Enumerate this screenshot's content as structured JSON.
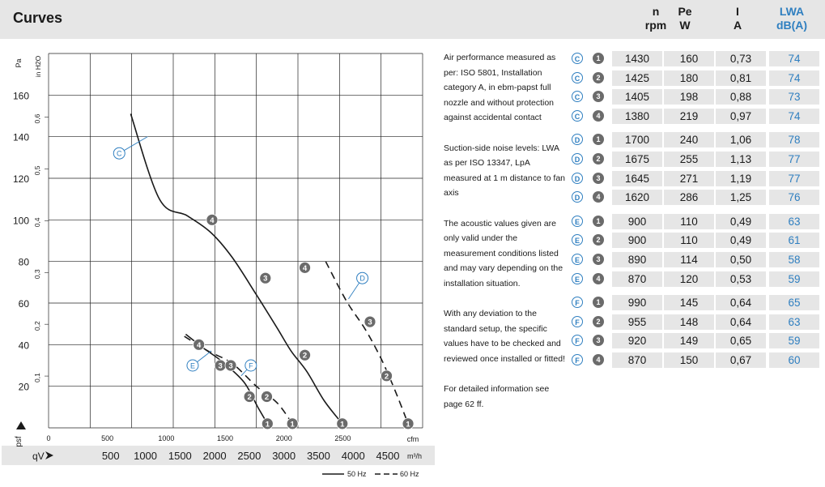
{
  "header": {
    "title": "Curves",
    "columns": [
      {
        "l1": "n",
        "l2": "rpm",
        "blue": false
      },
      {
        "l1": "Pe",
        "l2": "W",
        "blue": false
      },
      {
        "l1": "I",
        "l2": "A",
        "blue": false
      },
      {
        "l1": "LWA",
        "l2": "dB(A)",
        "blue": true
      }
    ]
  },
  "notes": [
    "Air performance measured as per: ISO 5801, Installation category A, in ebm-papst full nozzle and without protection against accidental contact",
    "Suction-side noise levels: LWA as per ISO 13347, LpA measured at 1 m distance to fan axis",
    "The acoustic values given are only valid under the measurement conditions listed and may vary depending on the installation situation.",
    "With any deviation to the standard setup, the specific values have to be checked and reviewed once installed or fitted!",
    "For detailed information see page 62 ff."
  ],
  "table": [
    {
      "group": "C",
      "pt": "1",
      "n": "1430",
      "pe": "160",
      "i": "0,73",
      "lwa": "74"
    },
    {
      "group": "C",
      "pt": "2",
      "n": "1425",
      "pe": "180",
      "i": "0,81",
      "lwa": "74"
    },
    {
      "group": "C",
      "pt": "3",
      "n": "1405",
      "pe": "198",
      "i": "0,88",
      "lwa": "73"
    },
    {
      "group": "C",
      "pt": "4",
      "n": "1380",
      "pe": "219",
      "i": "0,97",
      "lwa": "74"
    },
    {
      "group": "D",
      "pt": "1",
      "n": "1700",
      "pe": "240",
      "i": "1,06",
      "lwa": "78"
    },
    {
      "group": "D",
      "pt": "2",
      "n": "1675",
      "pe": "255",
      "i": "1,13",
      "lwa": "77"
    },
    {
      "group": "D",
      "pt": "3",
      "n": "1645",
      "pe": "271",
      "i": "1,19",
      "lwa": "77"
    },
    {
      "group": "D",
      "pt": "4",
      "n": "1620",
      "pe": "286",
      "i": "1,25",
      "lwa": "76"
    },
    {
      "group": "E",
      "pt": "1",
      "n": "900",
      "pe": "110",
      "i": "0,49",
      "lwa": "63"
    },
    {
      "group": "E",
      "pt": "2",
      "n": "900",
      "pe": "110",
      "i": "0,49",
      "lwa": "61"
    },
    {
      "group": "E",
      "pt": "3",
      "n": "890",
      "pe": "114",
      "i": "0,50",
      "lwa": "58"
    },
    {
      "group": "E",
      "pt": "4",
      "n": "870",
      "pe": "120",
      "i": "0,53",
      "lwa": "59"
    },
    {
      "group": "F",
      "pt": "1",
      "n": "990",
      "pe": "145",
      "i": "0,64",
      "lwa": "65"
    },
    {
      "group": "F",
      "pt": "2",
      "n": "955",
      "pe": "148",
      "i": "0,64",
      "lwa": "63"
    },
    {
      "group": "F",
      "pt": "3",
      "n": "920",
      "pe": "149",
      "i": "0,65",
      "lwa": "59"
    },
    {
      "group": "F",
      "pt": "4",
      "n": "870",
      "pe": "150",
      "i": "0,67",
      "lwa": "60"
    }
  ],
  "colors": {
    "blue": "#2f7fc0",
    "grid": "#222222",
    "cell": "#e6e6e6",
    "badge": "#6b6b6b",
    "band": "#e6e6e6"
  },
  "chart_data": {
    "type": "line",
    "ylabel_pa": "Pa",
    "ylabel_inh2o": "in H2O",
    "y_axis_symbol": "psf",
    "x_axis_symbol": "qV",
    "ylim_pa": [
      0,
      180
    ],
    "xlim_m3h": [
      0,
      5400
    ],
    "y_ticks_pa": [
      "20",
      "40",
      "60",
      "80",
      "100",
      "120",
      "140",
      "160"
    ],
    "y_ticks_inh2o": [
      "0,1",
      "0,2",
      "0,3",
      "0,4",
      "0,5",
      "0,6"
    ],
    "x_ticks_cfm": [
      "0",
      "500",
      "1000",
      "1500",
      "2000",
      "2500"
    ],
    "x_unit_cfm": "cfm",
    "x_ticks_m3h": [
      "500",
      "1000",
      "1500",
      "2000",
      "2500",
      "3000",
      "3500",
      "4000",
      "4500"
    ],
    "x_unit_m3h": "m³/h",
    "legend": [
      {
        "label": "50 Hz",
        "style": "solid"
      },
      {
        "label": "60 Hz",
        "style": "dashed"
      }
    ],
    "series": [
      {
        "style": "solid",
        "points": [
          [
            1185,
            151
          ],
          [
            1600,
            110
          ],
          [
            2000,
            102
          ],
          [
            2340,
            94
          ],
          [
            2650,
            82
          ],
          [
            3000,
            64
          ],
          [
            3300,
            48
          ],
          [
            3500,
            37
          ],
          [
            3730,
            27
          ],
          [
            3980,
            13
          ],
          [
            4240,
            2
          ]
        ]
      },
      {
        "style": "dashed",
        "points": [
          [
            4000,
            80
          ],
          [
            4300,
            61
          ],
          [
            4560,
            48
          ],
          [
            4760,
            36
          ],
          [
            4900,
            26
          ],
          [
            5050,
            14
          ],
          [
            5190,
            2
          ]
        ]
      },
      {
        "style": "solid",
        "points": [
          [
            1980,
            45
          ],
          [
            2250,
            38
          ],
          [
            2500,
            32
          ],
          [
            2820,
            22
          ],
          [
            3020,
            10
          ],
          [
            3160,
            2
          ]
        ]
      },
      {
        "style": "dashed",
        "points": [
          [
            1960,
            44
          ],
          [
            2300,
            37
          ],
          [
            2650,
            31
          ],
          [
            3000,
            20
          ],
          [
            3300,
            12
          ],
          [
            3520,
            2
          ]
        ]
      }
    ],
    "markers": [
      {
        "label": "1",
        "x": 3160,
        "y": 2,
        "kind": "num"
      },
      {
        "label": "1",
        "x": 3520,
        "y": 2,
        "kind": "num"
      },
      {
        "label": "1",
        "x": 4240,
        "y": 2,
        "kind": "num"
      },
      {
        "label": "1",
        "x": 5190,
        "y": 2,
        "kind": "num"
      },
      {
        "label": "2",
        "x": 2900,
        "y": 15,
        "kind": "num"
      },
      {
        "label": "2",
        "x": 3150,
        "y": 15,
        "kind": "num"
      },
      {
        "label": "2",
        "x": 3700,
        "y": 35,
        "kind": "num"
      },
      {
        "label": "2",
        "x": 4880,
        "y": 25,
        "kind": "num"
      },
      {
        "label": "3",
        "x": 2480,
        "y": 30,
        "kind": "num"
      },
      {
        "label": "3",
        "x": 2630,
        "y": 30,
        "kind": "num"
      },
      {
        "label": "3",
        "x": 3130,
        "y": 72,
        "kind": "num"
      },
      {
        "label": "3",
        "x": 4640,
        "y": 51,
        "kind": "num"
      },
      {
        "label": "4",
        "x": 2170,
        "y": 40,
        "kind": "num"
      },
      {
        "label": "4",
        "x": 2360,
        "y": 100,
        "kind": "num"
      },
      {
        "label": "4",
        "x": 3700,
        "y": 77,
        "kind": "num"
      },
      {
        "label": "C",
        "x": 1020,
        "y": 132,
        "kind": "letter"
      },
      {
        "label": "D",
        "x": 4530,
        "y": 72,
        "kind": "letter"
      },
      {
        "label": "E",
        "x": 2080,
        "y": 30,
        "kind": "letter"
      },
      {
        "label": "F",
        "x": 2920,
        "y": 30,
        "kind": "letter"
      }
    ],
    "leaders": [
      {
        "from": [
          1020,
          132
        ],
        "to": [
          1430,
          140
        ]
      },
      {
        "from": [
          4530,
          72
        ],
        "to": [
          4330,
          62
        ]
      },
      {
        "from": [
          2080,
          30
        ],
        "to": [
          2350,
          37
        ]
      },
      {
        "from": [
          2920,
          30
        ],
        "to": [
          2780,
          25
        ]
      }
    ]
  }
}
